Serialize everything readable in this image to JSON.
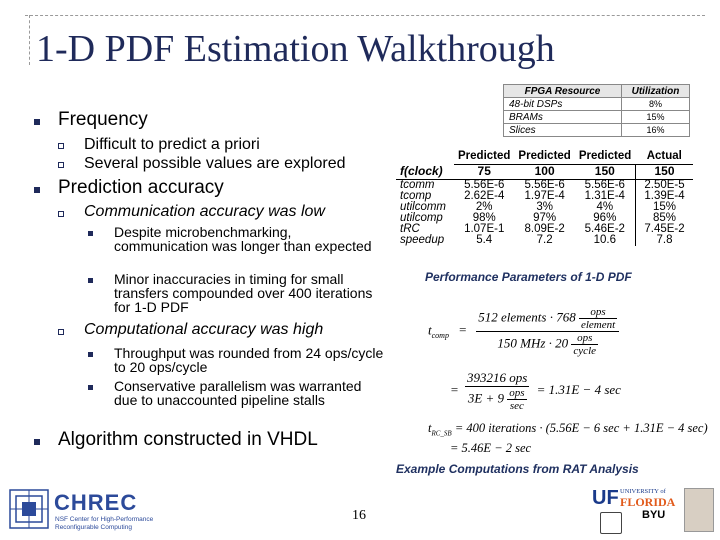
{
  "title": "1-D PDF Estimation Walkthrough",
  "bullets": {
    "frequency": "Frequency",
    "freq_sub1": "Difficult to predict a priori",
    "freq_sub2": "Several possible values are explored",
    "prediction": "Prediction accuracy",
    "comm": "Communication accuracy was low",
    "comm_sub1": "Despite microbenchmarking, communication was longer than expected",
    "comm_sub2": "Minor inaccuracies in timing for small transfers compounded over 400 iterations for 1-D PDF",
    "compute": "Computational accuracy was high",
    "compute_sub1": "Throughput was rounded from 24 ops/cycle to 20 ops/cycle",
    "compute_sub2": "Conservative parallelism was warranted due to unaccounted pipeline stalls",
    "vhdl": "Algorithm constructed in VHDL"
  },
  "fpga_table": {
    "headers": [
      "FPGA Resource",
      "Utilization"
    ],
    "rows": [
      [
        "48-bit DSPs",
        "8%"
      ],
      [
        "BRAMs",
        "15%"
      ],
      [
        "Slices",
        "16%"
      ]
    ]
  },
  "perf_table": {
    "headers": [
      "",
      "Predicted",
      "Predicted",
      "Predicted",
      "Actual"
    ],
    "rows": [
      [
        "f(clock)",
        "75",
        "100",
        "150",
        "150"
      ],
      [
        "tcomm",
        "5.56E-6",
        "5.56E-6",
        "5.56E-6",
        "2.50E-5"
      ],
      [
        "tcomp",
        "2.62E-4",
        "1.97E-4",
        "1.31E-4",
        "1.39E-4"
      ],
      [
        "utilcomm",
        "2%",
        "3%",
        "4%",
        "15%"
      ],
      [
        "utilcomp",
        "98%",
        "97%",
        "96%",
        "85%"
      ],
      [
        "tRC",
        "1.07E-1",
        "8.09E-2",
        "5.46E-2",
        "7.45E-2"
      ],
      [
        "speedup",
        "5.4",
        "7.2",
        "10.6",
        "7.8"
      ]
    ]
  },
  "captions": {
    "perf": "Performance Parameters of 1-D PDF",
    "examples": "Example Computations from RAT Analysis"
  },
  "equations": {
    "tcomp_label": "t",
    "tcomp_sub": "comp",
    "eq1_num": "512 elements · 768",
    "eq1_num_frac_top": "ops",
    "eq1_num_frac_bot": "element",
    "eq1_den": "150 MHz · 20",
    "eq1_den_frac_top": "ops",
    "eq1_den_frac_bot": "cycle",
    "eq2_num": "393216",
    "eq2_num_unit": "ops",
    "eq2_den": "3E + 9",
    "eq2_den_unit_top": "ops",
    "eq2_den_unit_bot": "sec",
    "eq2_result": "= 1.31E − 4 sec",
    "trc_label": "t",
    "trc_sub": "RC_SB",
    "eq3_body": "= 400 iterations · (5.56E − 6 sec + 1.31E − 4 sec)",
    "eq4_body": "= 5.46E − 2 sec"
  },
  "page_number": "16",
  "logos": {
    "chrec_name": "CHREC",
    "chrec_sub1": "NSF Center for High-Performance",
    "chrec_sub2": "Reconfigurable Computing",
    "uf_line1": "UNIVERSITY of",
    "uf_line2": "FLORIDA",
    "byu": "BYU"
  },
  "colors": {
    "title": "#1f2a5a",
    "caption": "#1f3060",
    "chrec_blue": "#2c4a9a"
  }
}
